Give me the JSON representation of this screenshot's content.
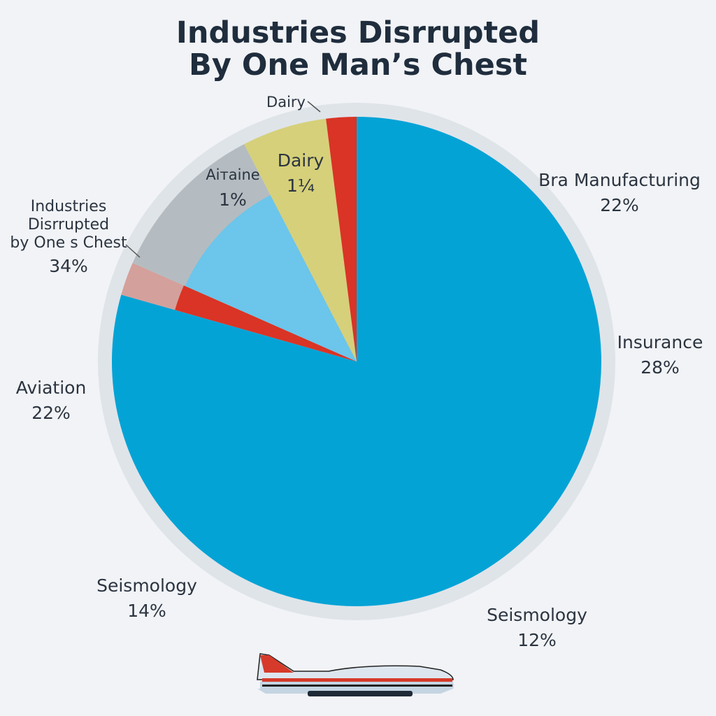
{
  "chart_data": {
    "type": "pie",
    "title": [
      "Industries Disrrupted",
      "By One Man’s Chest"
    ],
    "colors": {
      "background": "#f1f3f6",
      "ring": "#dfe4e9",
      "title": "#1f2d3d"
    },
    "slices": [
      {
        "value": 79.4,
        "color": "#04a3d6"
      },
      {
        "value": 2.2,
        "color": "#d93425",
        "outer_color": "#d4a09b"
      },
      {
        "value": 10.8,
        "color": "#6cc5ea",
        "outer_color": "#b4bcc1"
      },
      {
        "value": 5.6,
        "color": "#d6d07a"
      },
      {
        "value": 2.0,
        "color": "#d93425"
      }
    ],
    "labels": [
      {
        "name": "Dairy",
        "pct": ""
      },
      {
        "name": "Dairy",
        "pct": "1⅟₄"
      },
      {
        "name": "Aiтaine",
        "pct": "1%"
      },
      {
        "name": "Bra Manufacturing",
        "pct": "22%"
      },
      {
        "name": "Industries\nDisrrupted\nby One s Chest",
        "pct": "34%"
      },
      {
        "name": "Insurance",
        "pct": "28%"
      },
      {
        "name": "Aviation",
        "pct": "22%"
      },
      {
        "name": "Seismology",
        "pct": "14%"
      },
      {
        "name": "Seismology",
        "pct": "12%"
      }
    ],
    "decoration": "airplane-illustration"
  }
}
